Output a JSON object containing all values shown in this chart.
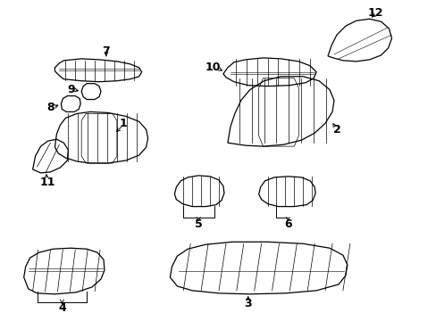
{
  "bg_color": "#ffffff",
  "line_color": "#000000",
  "figsize": [
    4.89,
    3.6
  ],
  "dpi": 100,
  "parts": {
    "p1_label": "1",
    "p2_label": "2",
    "p3_label": "3",
    "p4_label": "4",
    "p5_label": "5",
    "p6_label": "6",
    "p7_label": "7",
    "p8_label": "8",
    "p9_label": "9",
    "p10_label": "10",
    "p11_label": "11",
    "p12_label": "12"
  },
  "label_font_size": 9
}
